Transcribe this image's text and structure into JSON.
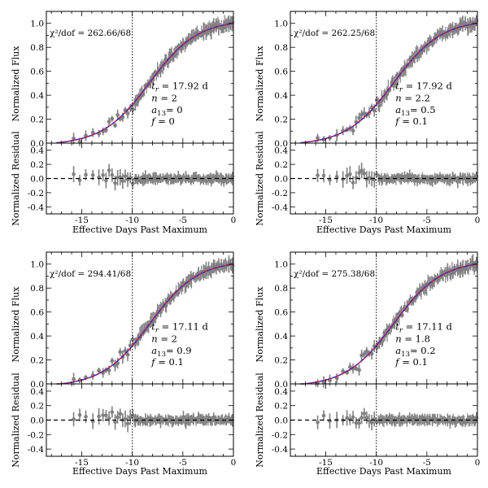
{
  "figure": {
    "xlabel": "Effective Days Past Maximum",
    "ylabel_top": "Normalized Flux",
    "ylabel_bottom": "Normalized Residual",
    "xticks": [
      "-15",
      "-10",
      "-5",
      "0"
    ],
    "yticks_top": [
      "0.0",
      "0.2",
      "0.4",
      "0.6",
      "0.8",
      "1.0"
    ],
    "yticks_bottom": [
      "-0.4",
      "-0.2",
      "0.0",
      "0.2",
      "0.4"
    ]
  },
  "chart_data": [
    {
      "type": "line",
      "panel": "top-left",
      "chi_label": "χ²/dof = 262.66/68",
      "params": [
        {
          "label": "t_r",
          "value": "= 17.92 d"
        },
        {
          "label": "n",
          "value": "= 2"
        },
        {
          "label": "a13",
          "value": "= 0"
        },
        {
          "label": "f",
          "value": "= 0"
        }
      ],
      "model": {
        "tr": 17.92,
        "n": 2.0,
        "a13": 0.0,
        "f": 0.0
      },
      "xlim": [
        -18.5,
        0
      ],
      "ylim_top": [
        0,
        1.1
      ],
      "ylim_bottom": [
        -0.5,
        0.5
      ],
      "vline_x": -10,
      "series": [
        {
          "name": "data",
          "color": "#808080"
        },
        {
          "name": "model (red)",
          "color": "#e0103a"
        },
        {
          "name": "model (blue)",
          "color": "#3030d0"
        }
      ]
    },
    {
      "type": "line",
      "panel": "top-right",
      "chi_label": "χ²/dof = 262.25/68",
      "params": [
        {
          "label": "t_r",
          "value": "= 17.92 d"
        },
        {
          "label": "n",
          "value": "= 2.2"
        },
        {
          "label": "a13",
          "value": "= 0.5"
        },
        {
          "label": "f",
          "value": "= 0.1"
        }
      ],
      "model": {
        "tr": 17.92,
        "n": 2.2,
        "a13": 0.5,
        "f": 0.1
      },
      "xlim": [
        -18.5,
        0
      ],
      "ylim_top": [
        0,
        1.1
      ],
      "ylim_bottom": [
        -0.5,
        0.5
      ],
      "vline_x": -10,
      "series": [
        {
          "name": "data",
          "color": "#808080"
        },
        {
          "name": "model (red)",
          "color": "#e0103a"
        },
        {
          "name": "model (blue)",
          "color": "#3030d0"
        }
      ]
    },
    {
      "type": "line",
      "panel": "bottom-left",
      "chi_label": "χ²/dof = 294.41/68",
      "params": [
        {
          "label": "t_r",
          "value": "= 17.11 d"
        },
        {
          "label": "n",
          "value": "= 2"
        },
        {
          "label": "a13",
          "value": "= 0.9"
        },
        {
          "label": "f",
          "value": "= 0.1"
        }
      ],
      "model": {
        "tr": 17.11,
        "n": 2.0,
        "a13": 0.9,
        "f": 0.1
      },
      "xlim": [
        -18.5,
        0
      ],
      "ylim_top": [
        0,
        1.1
      ],
      "ylim_bottom": [
        -0.5,
        0.5
      ],
      "vline_x": -10,
      "series": [
        {
          "name": "data",
          "color": "#808080"
        },
        {
          "name": "model (red)",
          "color": "#e0103a"
        },
        {
          "name": "model (blue)",
          "color": "#3030d0"
        }
      ]
    },
    {
      "type": "line",
      "panel": "bottom-right",
      "chi_label": "χ²/dof = 275.38/68",
      "params": [
        {
          "label": "t_r",
          "value": "= 17.11 d"
        },
        {
          "label": "n",
          "value": "= 1.8"
        },
        {
          "label": "a13",
          "value": "= 0.2"
        },
        {
          "label": "f",
          "value": "= 0.1"
        }
      ],
      "model": {
        "tr": 17.11,
        "n": 1.8,
        "a13": 0.2,
        "f": 0.1
      },
      "xlim": [
        -18.5,
        0
      ],
      "ylim_top": [
        0,
        1.1
      ],
      "ylim_bottom": [
        -0.5,
        0.5
      ],
      "vline_x": -10,
      "series": [
        {
          "name": "data",
          "color": "#808080"
        },
        {
          "name": "model (red)",
          "color": "#e0103a"
        },
        {
          "name": "model (blue)",
          "color": "#3030d0"
        }
      ]
    }
  ]
}
